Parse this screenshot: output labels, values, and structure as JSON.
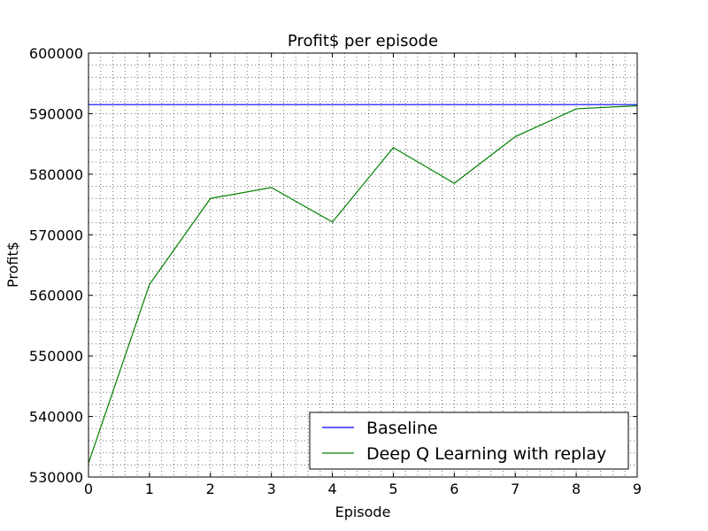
{
  "chart_data": {
    "type": "line",
    "title": "Profit$ per episode",
    "xlabel": "Episode",
    "ylabel": "Profit$",
    "xlim": [
      0,
      9
    ],
    "ylim": [
      530000,
      600000
    ],
    "x_ticks": [
      0,
      1,
      2,
      3,
      4,
      5,
      6,
      7,
      8,
      9
    ],
    "y_ticks": [
      530000,
      540000,
      550000,
      560000,
      570000,
      580000,
      590000,
      600000
    ],
    "grid": "dotted minor grid",
    "legend_position": "lower-right",
    "x": [
      0,
      1,
      2,
      3,
      4,
      5,
      6,
      7,
      8,
      9
    ],
    "series": [
      {
        "name": "Baseline",
        "color": "#0000ff",
        "values": [
          591500,
          591500,
          591500,
          591500,
          591500,
          591500,
          591500,
          591500,
          591500,
          591500
        ]
      },
      {
        "name": "Deep Q Learning with replay",
        "color": "#008000",
        "values": [
          532300,
          561800,
          576000,
          577800,
          572100,
          584400,
          578500,
          586200,
          590800,
          591300
        ]
      }
    ]
  }
}
